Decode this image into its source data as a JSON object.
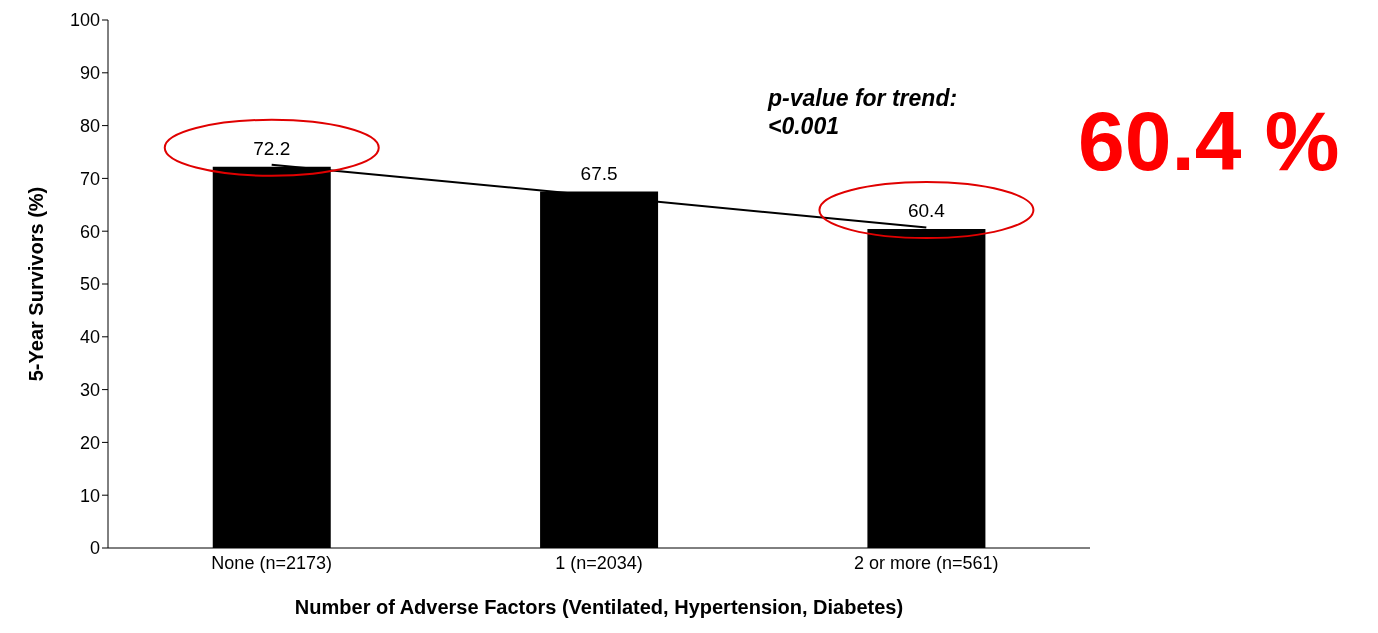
{
  "chart_data": {
    "type": "bar",
    "xlabel": "Number of Adverse Factors (Ventilated, Hypertension, Diabetes)",
    "ylabel": "5-Year Survivors (%)",
    "categories": [
      "None (n=2173)",
      "1 (n=2034)",
      "2 or more (n=561)"
    ],
    "series": [
      {
        "color": "#000000",
        "values": [
          72.2,
          67.5,
          60.4
        ],
        "value_labels": [
          "72.2",
          "67.5",
          "60.4"
        ]
      },
      {
        "type": "line",
        "color": "#000000",
        "x": [
          "None (n=2173)",
          "2 or more (n=561)"
        ],
        "values": [
          72.6,
          60.7
        ]
      }
    ],
    "ylim": [
      0,
      100
    ],
    "yticks": [
      0,
      10,
      20,
      30,
      40,
      50,
      60,
      70,
      80,
      90,
      100
    ],
    "grid": false,
    "legend": false,
    "marker": "none",
    "annotations": [
      "p-value for trend: <0.001",
      "60.4 %"
    ]
  }
}
